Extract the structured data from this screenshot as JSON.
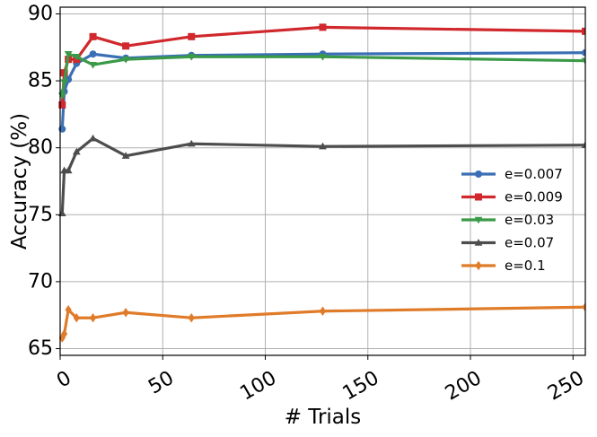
{
  "chart_data": {
    "type": "line",
    "title": "",
    "xlabel": "# Trials",
    "ylabel": "Accuracy (%)",
    "xlim": [
      0,
      256
    ],
    "ylim": [
      64.5,
      90.5
    ],
    "xticks": [
      0,
      50,
      100,
      150,
      200,
      250
    ],
    "xtick_labels": [
      "0",
      "50",
      "100",
      "150",
      "200",
      "250"
    ],
    "yticks": [
      65,
      70,
      75,
      80,
      85,
      90
    ],
    "ytick_labels": [
      "65",
      "70",
      "75",
      "80",
      "85",
      "90"
    ],
    "grid": true,
    "legend_position": "center-right",
    "x": [
      1,
      2,
      4,
      8,
      16,
      32,
      64,
      128,
      256
    ],
    "series": [
      {
        "name": "e=0.007",
        "color": "#3a6fb5",
        "marker": "circle",
        "values": [
          81.4,
          84.2,
          85.1,
          86.3,
          87.0,
          86.7,
          86.9,
          87.0,
          87.1
        ]
      },
      {
        "name": "e=0.009",
        "color": "#d0282c",
        "marker": "square",
        "values": [
          83.2,
          85.6,
          86.6,
          86.6,
          88.3,
          87.6,
          88.3,
          89.0,
          88.7
        ]
      },
      {
        "name": "e=0.03",
        "color": "#3b9a48",
        "marker": "triangle-down",
        "values": [
          83.9,
          84.9,
          87.0,
          86.8,
          86.2,
          86.6,
          86.8,
          86.8,
          86.5
        ]
      },
      {
        "name": "e=0.07",
        "color": "#4d4d4d",
        "marker": "triangle-up",
        "values": [
          75.1,
          78.3,
          78.3,
          79.7,
          80.7,
          79.4,
          80.3,
          80.1,
          80.2
        ]
      },
      {
        "name": "e=0.1",
        "color": "#e07b29",
        "marker": "diamond",
        "values": [
          65.8,
          66.1,
          67.9,
          67.3,
          67.3,
          67.7,
          67.3,
          67.8,
          68.1
        ]
      }
    ]
  }
}
